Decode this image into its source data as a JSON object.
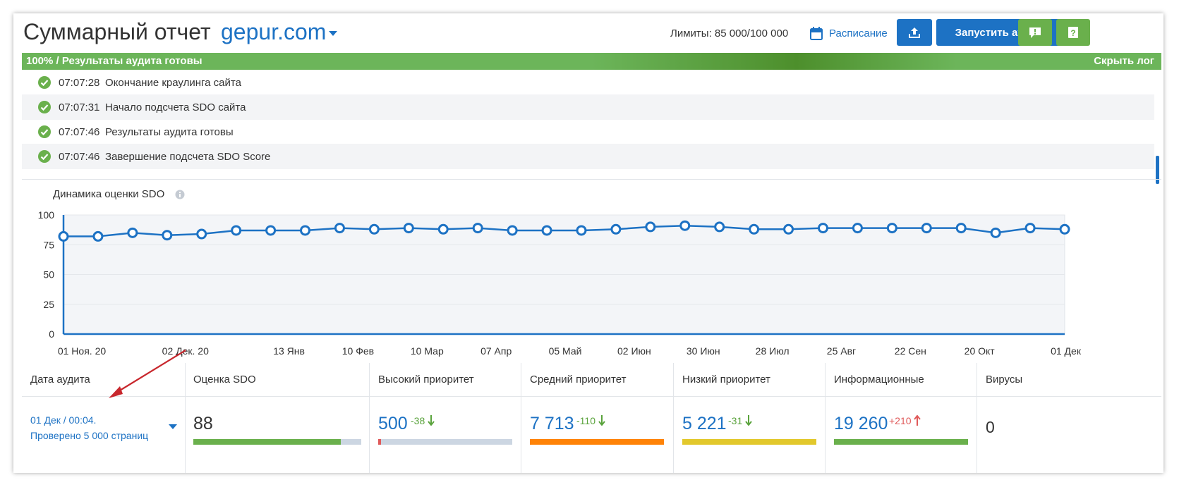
{
  "header": {
    "title": "Суммарный отчет",
    "domain": "gepur.com",
    "limits": "Лимиты: 85 000/100 000",
    "schedule_label": "Расписание",
    "run_audit_label": "Запустить аудит"
  },
  "progress": {
    "label": "100% / Результаты аудита готовы",
    "percent": 100,
    "hide_log": "Скрыть лог"
  },
  "log": [
    {
      "time": "07:07:28",
      "text": "Окончание краулинга сайта"
    },
    {
      "time": "07:07:31",
      "text": "Начало подсчета SDO сайта"
    },
    {
      "time": "07:07:46",
      "text": "Результаты аудита готовы"
    },
    {
      "time": "07:07:46",
      "text": "Завершение подсчета SDO Score"
    }
  ],
  "chart_data": {
    "type": "line",
    "title": "Динамика оценки SDO",
    "ylim": [
      0,
      100
    ],
    "yticks": [
      0,
      25,
      50,
      75,
      100
    ],
    "x_tick_labels": [
      "01 Ноя. 20",
      "02 Дек. 20",
      "13 Янв",
      "10 Фев",
      "10 Мар",
      "07 Апр",
      "05 Май",
      "02 Июн",
      "30 Июн",
      "28 Июл",
      "25 Авг",
      "22 Сен",
      "20 Окт",
      "01 Дек"
    ],
    "x_tick_index": [
      0,
      3,
      6,
      8,
      10,
      12,
      14,
      16,
      18,
      20,
      22,
      24,
      26,
      28.5
    ],
    "series": [
      {
        "name": "SDO",
        "color": "#1d72c4",
        "values": [
          82,
          82,
          85,
          83,
          84,
          87,
          87,
          87,
          89,
          88,
          89,
          88,
          89,
          87,
          87,
          87,
          88,
          90,
          91,
          90,
          88,
          88,
          89,
          89,
          89,
          89,
          89,
          85,
          89,
          88
        ]
      }
    ]
  },
  "stats": {
    "headers": {
      "date": "Дата аудита",
      "sdo": "Оценка SDO",
      "high": "Высокий приоритет",
      "medium": "Средний приоритет",
      "low": "Низкий приоритет",
      "info": "Информационные",
      "viruses": "Вирусы"
    },
    "date_line1": "01 Дек / 00:04.",
    "date_line2": "Проверено 5 000 страниц",
    "sdo": {
      "value": "88",
      "fill": 0.88,
      "color": "#6ab04c"
    },
    "high": {
      "value": "500",
      "delta": "-38",
      "fill": 0.02,
      "color": "#e05a5a",
      "delta_color": "#5aa33c"
    },
    "medium": {
      "value": "7 713",
      "delta": "-110",
      "fill": 1.0,
      "color": "#ff8307",
      "delta_color": "#5aa33c"
    },
    "low": {
      "value": "5 221",
      "delta": "-31",
      "fill": 1.0,
      "color": "#e2c82c",
      "delta_color": "#5aa33c"
    },
    "info": {
      "value": "19 260",
      "delta": "+210",
      "fill": 1.0,
      "color": "#6ab04c",
      "delta_color": "#e05a5a"
    },
    "viruses": {
      "value": "0"
    }
  },
  "colors": {
    "accent": "#1d72c4",
    "green": "#6ab04c",
    "down_arrow": "#5aa33c",
    "up_arrow": "#e05a5a",
    "annotation_arrow": "#c8272d"
  }
}
